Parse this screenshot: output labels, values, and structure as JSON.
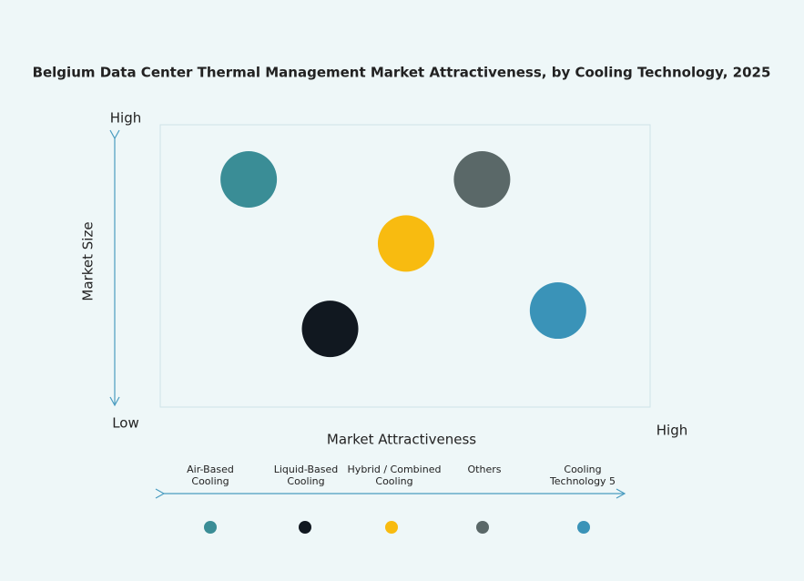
{
  "chart_data": {
    "type": "bubble",
    "title": "Belgium Data Center Thermal Management Market Attractiveness,  by Cooling Technology, 2025",
    "x_label": "Market Attractiveness",
    "y_label": "Market Size",
    "xticks": [
      {
        "value": 100,
        "label": "High"
      }
    ],
    "yticks": [
      {
        "value": 0,
        "label": "Low"
      },
      {
        "value": 100,
        "label": "High"
      }
    ],
    "xlim": [
      0,
      100
    ],
    "ylim": [
      0,
      100
    ],
    "series": [
      {
        "name": "Air-Based Cooling",
        "color": "#3a8d96",
        "x": [
          22
        ],
        "y": [
          80
        ]
      },
      {
        "name": "Liquid-Based Cooling",
        "color": "#111820",
        "x": [
          37
        ],
        "y": [
          31
        ]
      },
      {
        "name": "Hybrid / Combined Cooling",
        "color": "#f8bb10",
        "x": [
          51
        ],
        "y": [
          59
        ]
      },
      {
        "name": "Others",
        "color": "#5a6868",
        "x": [
          65
        ],
        "y": [
          80
        ]
      },
      {
        "name": "Cooling Technology 5",
        "color": "#3a93b8",
        "x": [
          79
        ],
        "y": [
          37
        ]
      }
    ]
  }
}
